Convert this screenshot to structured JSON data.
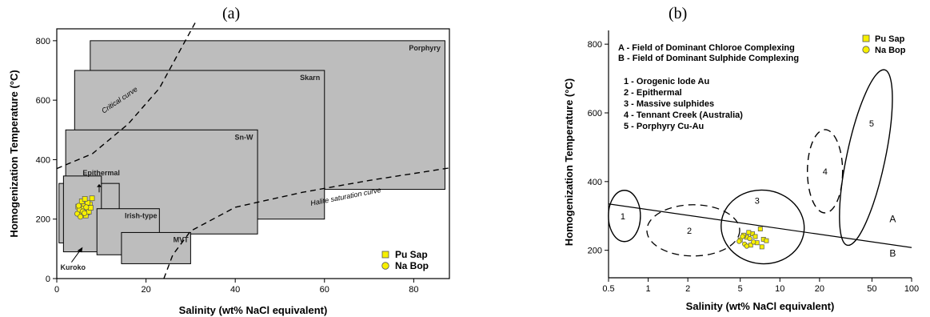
{
  "panel_labels": {
    "a": "(a)",
    "b": "(b)"
  },
  "colors": {
    "box_fill": "#bdbdbd",
    "pu_sap": "#f7f000",
    "na_bop": "#f7f000",
    "stroke": "#000000"
  },
  "chart_data": [
    {
      "type": "scatter",
      "panel": "(a)",
      "xlabel": "Salinity (wt% NaCl equivalent)",
      "ylabel": "Homogenization Temperature (°C)",
      "xlim": [
        0,
        88
      ],
      "ylim": [
        0,
        840
      ],
      "xticks": [
        "0",
        "20",
        "40",
        "60",
        "80"
      ],
      "yticks": [
        "0",
        "200",
        "400",
        "600",
        "800"
      ],
      "fields": [
        {
          "name": "Porphyry",
          "x": [
            7.5,
            87
          ],
          "y": [
            300,
            800
          ]
        },
        {
          "name": "Skarn",
          "x": [
            4,
            60
          ],
          "y": [
            200,
            700
          ]
        },
        {
          "name": "Sn-W",
          "x": [
            2,
            45
          ],
          "y": [
            150,
            500
          ]
        },
        {
          "name": "Epithermal",
          "x": [
            0.5,
            14
          ],
          "y": [
            120,
            320
          ]
        },
        {
          "name": "Kuroko",
          "x": [
            1.5,
            10
          ],
          "y": [
            90,
            345
          ]
        },
        {
          "name": "Irish-type",
          "x": [
            9,
            23
          ],
          "y": [
            80,
            235
          ]
        },
        {
          "name": "MVT",
          "x": [
            14.5,
            30
          ],
          "y": [
            50,
            155
          ]
        }
      ],
      "curves": [
        {
          "name": "Critical curve",
          "points": [
            [
              0,
              370
            ],
            [
              8,
              420
            ],
            [
              16,
              520
            ],
            [
              23,
              640
            ],
            [
              27,
              750
            ],
            [
              31,
              860
            ]
          ]
        },
        {
          "name": "Halite saturation curve",
          "points": [
            [
              24,
              0
            ],
            [
              26,
              80
            ],
            [
              30,
              160
            ],
            [
              40,
              240
            ],
            [
              55,
              290
            ],
            [
              70,
              330
            ],
            [
              88,
              372
            ]
          ]
        }
      ],
      "series": [
        {
          "name": "Pu Sap",
          "marker": "square",
          "points": [
            [
              5.2,
              230
            ],
            [
              6.1,
              245
            ],
            [
              6.8,
              222
            ],
            [
              7.4,
              250
            ],
            [
              7.9,
              270
            ],
            [
              6.5,
              212
            ],
            [
              5.6,
              260
            ],
            [
              4.8,
              242
            ],
            [
              7.2,
              225
            ],
            [
              6.0,
              235
            ],
            [
              5.4,
              215
            ],
            [
              6.9,
              255
            ],
            [
              7.6,
              238
            ],
            [
              6.3,
              268
            ]
          ]
        },
        {
          "name": "Na Bop",
          "marker": "circle",
          "points": [
            [
              4.6,
              218
            ],
            [
              5.1,
              232
            ],
            [
              5.8,
              226
            ],
            [
              6.6,
              240
            ],
            [
              5.3,
              208
            ],
            [
              4.9,
              245
            ],
            [
              6.2,
              220
            ]
          ]
        }
      ],
      "annotations": [
        "Porphyry",
        "Skarn",
        "Sn-W",
        "Epithermal",
        "Irish-type",
        "MVT",
        "Kuroko",
        "Critical curve",
        "Halite saturation curve"
      ],
      "legend": {
        "placement": "bottom-right",
        "entries": [
          "Pu Sap",
          "Na Bop"
        ]
      }
    },
    {
      "type": "scatter",
      "panel": "(b)",
      "xscale": "log",
      "xlabel": "Salinity (wt% NaCl equivalent)",
      "ylabel": "Homogenization Temperature (°C)",
      "xlim": [
        0.5,
        100
      ],
      "ylim": [
        120,
        840
      ],
      "xticks": [
        "0.5",
        "1",
        "2",
        "5",
        "10",
        "20",
        "50",
        "100"
      ],
      "yticks": [
        "200",
        "400",
        "600",
        "800"
      ],
      "notes": [
        "A - Field of Dominant Chloroe Complexing",
        "B - Field of Dominant Sulphide Complexing"
      ],
      "key": [
        "1 - Orogenic lode Au",
        "2 - Epithermal",
        "3 - Massive sulphides",
        "4 - Tennant Creek (Australia)",
        "5 - Porphyry Cu-Au"
      ],
      "divider": {
        "from": [
          0.5,
          335
        ],
        "to": [
          100,
          208
        ],
        "label_above": "A",
        "label_below": "B"
      },
      "fields": [
        {
          "name": "1",
          "style": "solid"
        },
        {
          "name": "2",
          "style": "dashed"
        },
        {
          "name": "3",
          "style": "solid"
        },
        {
          "name": "4",
          "style": "dashed"
        },
        {
          "name": "5",
          "style": "solid"
        }
      ],
      "series": [
        {
          "name": "Pu Sap",
          "marker": "square",
          "points": [
            [
              5.0,
              230
            ],
            [
              5.6,
              238
            ],
            [
              6.2,
              248
            ],
            [
              6.7,
              222
            ],
            [
              7.1,
              262
            ],
            [
              7.5,
              232
            ],
            [
              6.0,
              215
            ],
            [
              5.3,
              244
            ],
            [
              7.9,
              228
            ],
            [
              6.5,
              240
            ],
            [
              5.8,
              252
            ],
            [
              7.3,
              210
            ]
          ]
        },
        {
          "name": "Na Bop",
          "marker": "circle",
          "points": [
            [
              4.9,
              226
            ],
            [
              5.4,
              218
            ],
            [
              5.9,
              234
            ],
            [
              5.2,
              240
            ],
            [
              6.3,
              224
            ],
            [
              5.6,
              212
            ]
          ]
        }
      ],
      "legend": {
        "placement": "top-right",
        "entries": [
          "Pu Sap",
          "Na Bop"
        ]
      }
    }
  ]
}
